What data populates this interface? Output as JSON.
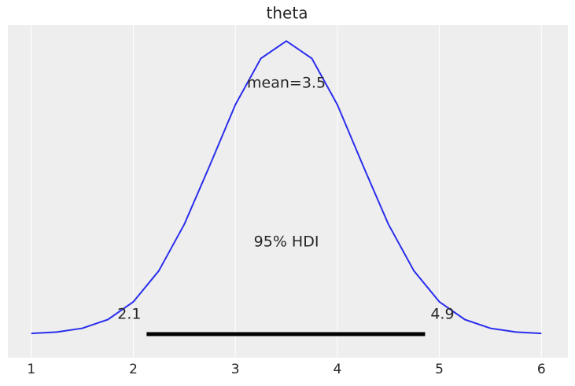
{
  "chart_data": {
    "type": "density",
    "title": "theta",
    "x": [
      1,
      1.25,
      1.5,
      1.75,
      2,
      2.25,
      2.5,
      2.75,
      3,
      3.25,
      3.5,
      3.75,
      4,
      4.25,
      4.5,
      4.75,
      5,
      5.25,
      5.5,
      5.75,
      6
    ],
    "values": [
      0.0012,
      0.0039,
      0.0111,
      0.0277,
      0.0615,
      0.1207,
      0.2095,
      0.3218,
      0.4373,
      0.5255,
      0.5587,
      0.5255,
      0.4373,
      0.3218,
      0.2095,
      0.1207,
      0.0615,
      0.0277,
      0.0111,
      0.0039,
      0.0012
    ],
    "color": "#2a2eec",
    "xlim": [
      0.77,
      6.26
    ],
    "xticks": [
      1,
      2,
      3,
      4,
      5,
      6
    ],
    "ylim": [
      -0.045,
      0.589
    ],
    "grid": true,
    "mean": 3.5,
    "mean_label": "mean=3.5",
    "hdi": [
      2.13,
      4.86
    ],
    "hdi_labels": [
      "2.1",
      "4.9"
    ],
    "hdi_color": "#000000",
    "hdi_text": "95% HDI"
  }
}
